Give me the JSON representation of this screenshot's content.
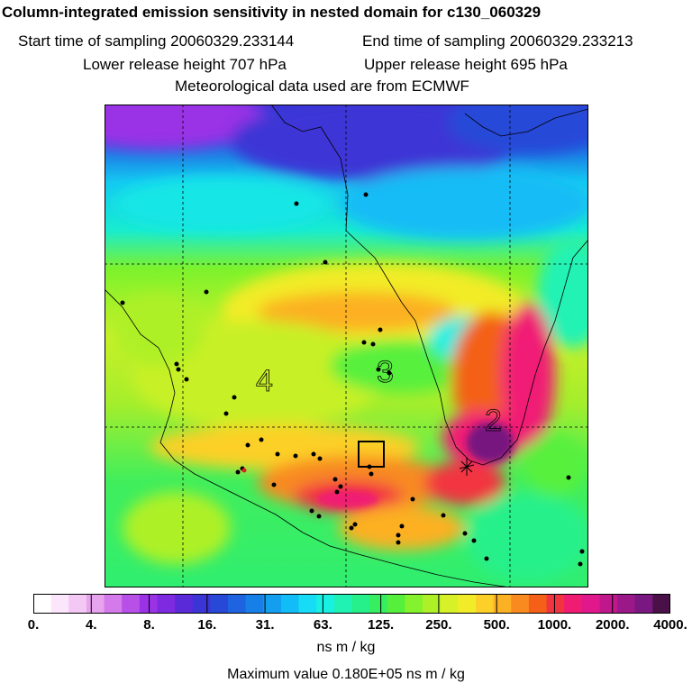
{
  "header": {
    "title": "Column-integrated emission sensitivity in nested domain for c130_060329",
    "start_label": "Start time of sampling 20060329.233144",
    "end_label": "End time of sampling 20060329.233213",
    "lower_label": "Lower release height  707 hPa",
    "upper_label": "Upper release height  695 hPa",
    "met_label": "Meteorological data used are from ECMWF"
  },
  "map": {
    "markers": [
      "4",
      "3",
      "2"
    ]
  },
  "colorbar": {
    "ticks": [
      "0.",
      "4.",
      "8.",
      "16.",
      "31.",
      "63.",
      "125.",
      "250.",
      "500.",
      "1000.",
      "2000.",
      "4000."
    ],
    "colors": [
      "#ffffff",
      "#fbe6fb",
      "#f4c8f4",
      "#e7a3ee",
      "#d47aea",
      "#b850e8",
      "#9a33e6",
      "#7d2ae0",
      "#5a2ad8",
      "#3c35d6",
      "#2848d8",
      "#1e64e0",
      "#1780e8",
      "#139ef0",
      "#12bcf6",
      "#16dcf6",
      "#18f0e2",
      "#20f2b4",
      "#26f08a",
      "#36ee60",
      "#56f03c",
      "#84f22c",
      "#aef028",
      "#d8f028",
      "#f2ec28",
      "#fcd028",
      "#fcb024",
      "#f88a20",
      "#f46018",
      "#f23440",
      "#f01c74",
      "#e0188c",
      "#c0188c",
      "#9a1888",
      "#781880",
      "#4a1048"
    ],
    "units": "ns m / kg",
    "max_label": "Maximum value  0.180E+05 ns m / kg"
  }
}
